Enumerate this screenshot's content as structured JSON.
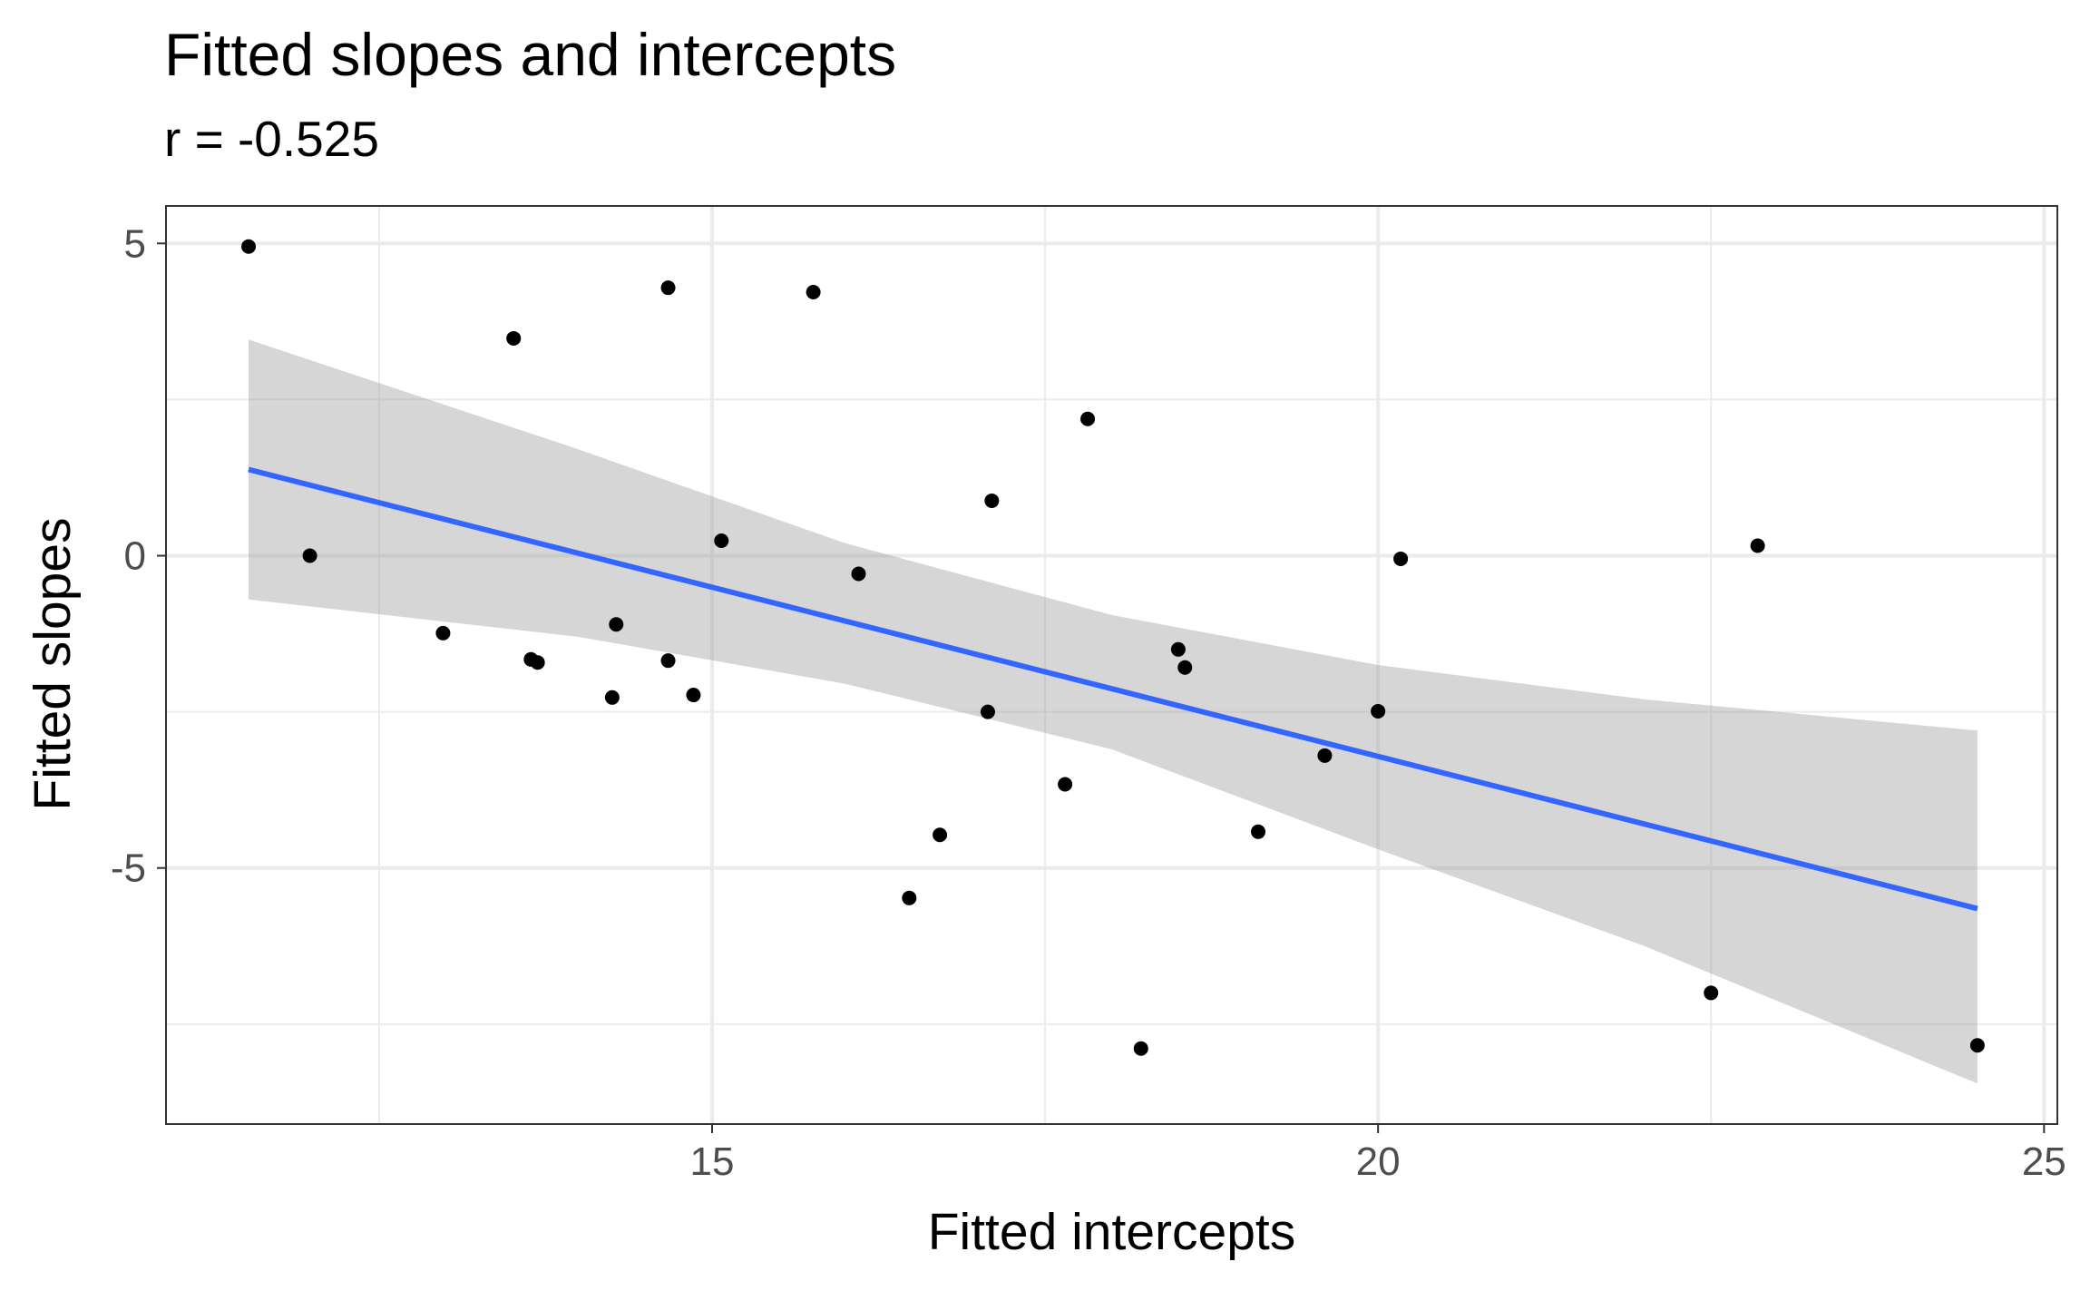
{
  "chart_data": {
    "type": "scatter",
    "title": "Fitted slopes and intercepts",
    "subtitle": "r = -0.525",
    "xlabel": "Fitted intercepts",
    "ylabel": "Fitted slopes",
    "xlim": [
      10.9,
      25.1
    ],
    "ylim": [
      -9.1,
      5.6
    ],
    "x_ticks": [
      15,
      20,
      25
    ],
    "y_ticks": [
      5,
      0,
      -5
    ],
    "x_tick_labels": [
      "15",
      "20",
      "25"
    ],
    "y_tick_labels": [
      "5",
      "0",
      "-5"
    ],
    "x_minor_ticks": [
      12.5,
      17.5,
      22.5
    ],
    "y_minor_ticks": [
      2.5,
      -2.5,
      -7.5
    ],
    "grid": true,
    "points": [
      {
        "x": 11.52,
        "y": 4.95
      },
      {
        "x": 11.98,
        "y": 0.0
      },
      {
        "x": 12.98,
        "y": -1.24
      },
      {
        "x": 13.51,
        "y": 3.48
      },
      {
        "x": 13.64,
        "y": -1.66
      },
      {
        "x": 13.69,
        "y": -1.71
      },
      {
        "x": 14.25,
        "y": -2.27
      },
      {
        "x": 14.28,
        "y": -1.1
      },
      {
        "x": 14.67,
        "y": 4.29
      },
      {
        "x": 14.67,
        "y": -1.68
      },
      {
        "x": 14.86,
        "y": -2.23
      },
      {
        "x": 15.07,
        "y": 0.24
      },
      {
        "x": 15.76,
        "y": 4.22
      },
      {
        "x": 16.1,
        "y": -0.29
      },
      {
        "x": 16.48,
        "y": -5.48
      },
      {
        "x": 16.71,
        "y": -4.47
      },
      {
        "x": 17.07,
        "y": -2.5
      },
      {
        "x": 17.1,
        "y": 0.88
      },
      {
        "x": 17.65,
        "y": -3.66
      },
      {
        "x": 17.82,
        "y": 2.19
      },
      {
        "x": 18.22,
        "y": -7.89
      },
      {
        "x": 18.5,
        "y": -1.5
      },
      {
        "x": 18.55,
        "y": -1.79
      },
      {
        "x": 19.1,
        "y": -4.42
      },
      {
        "x": 19.6,
        "y": -3.2
      },
      {
        "x": 20.0,
        "y": -2.49
      },
      {
        "x": 20.17,
        "y": -0.05
      },
      {
        "x": 22.5,
        "y": -7.0
      },
      {
        "x": 22.85,
        "y": 0.16
      },
      {
        "x": 24.5,
        "y": -7.84
      }
    ],
    "fit": {
      "x": [
        11.52,
        24.5
      ],
      "y": [
        1.38,
        -5.65
      ],
      "color": "#3366ff"
    },
    "confidence_band": {
      "x": [
        11.52,
        14.0,
        16.0,
        18.0,
        20.0,
        22.0,
        24.5
      ],
      "lower": [
        -0.7,
        -1.3,
        -2.05,
        -3.1,
        -4.7,
        -6.25,
        -8.45
      ],
      "upper": [
        3.46,
        1.7,
        0.2,
        -0.95,
        -1.75,
        -2.3,
        -2.8
      ],
      "color": "#999999"
    }
  }
}
